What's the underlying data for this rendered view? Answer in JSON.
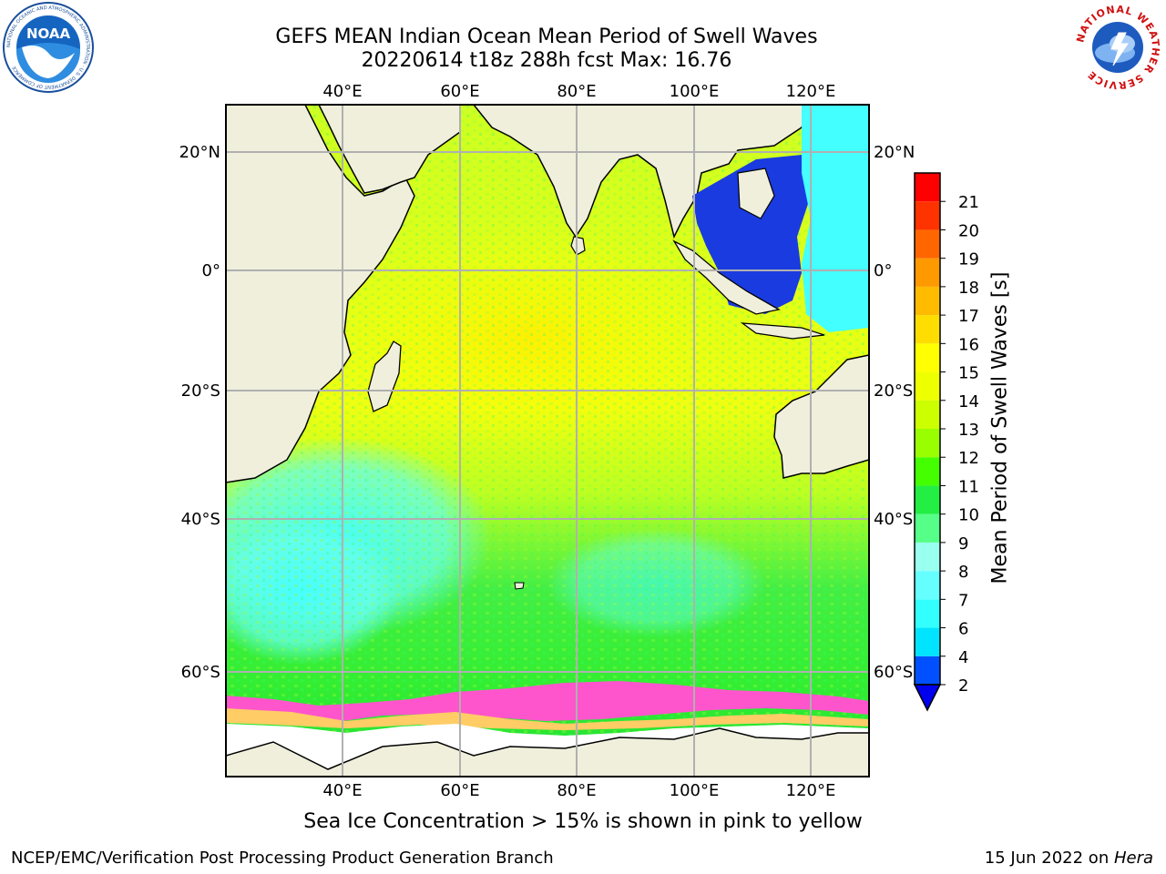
{
  "title_line1": "GEFS MEAN Indian Ocean Mean Period of Swell Waves",
  "title_line2": "20220614 t18z 288h fcst   Max: 16.76",
  "caption": "Sea Ice Concentration > 15% is shown in pink to yellow",
  "footer_left": "NCEP/EMC/Verification Post Processing Product Generation Branch",
  "footer_date": "15 Jun 2022 on ",
  "footer_host": "Hera",
  "noaa_logo_text": "NOAA",
  "noaa_ring_text": "NATIONAL OCEANIC AND ATMOSPHERIC ADMINISTRATION · U.S. DEPARTMENT OF COMMERCE",
  "nws_ring_text": "NATIONAL WEATHER SERVICE",
  "map": {
    "lon_labels": [
      "40°E",
      "60°E",
      "80°E",
      "100°E",
      "120°E"
    ],
    "lat_labels_left": [
      "20°N",
      "0°",
      "20°S",
      "40°S",
      "60°S"
    ],
    "lat_labels_right": [
      "20°N",
      "0°",
      "20°S",
      "40°S",
      "60°S"
    ]
  },
  "colorbar": {
    "label": "Mean Period of Swell Waves [s]",
    "ticks": [
      "2",
      "4",
      "6",
      "7",
      "8",
      "9",
      "10",
      "11",
      "12",
      "13",
      "14",
      "15",
      "16",
      "17",
      "18",
      "19",
      "20",
      "21"
    ],
    "colors": [
      "#0050ff",
      "#00e4ff",
      "#33ffff",
      "#66ffff",
      "#99ffee",
      "#55ff88",
      "#22ee44",
      "#44ff00",
      "#99ff00",
      "#ccff00",
      "#eeff00",
      "#ffff00",
      "#ffdd00",
      "#ffbb00",
      "#ff9900",
      "#ff6600",
      "#ff3300",
      "#ff0000"
    ],
    "extend_color": "#0000ee"
  },
  "colors": {
    "land": "#efefdc",
    "ocean_main": "#ccff11",
    "ocean_south": "#55ff88",
    "ocean_cyan": "#44ffff",
    "sea_ice": "#ff44cc",
    "grid": "#b0b0b0"
  }
}
